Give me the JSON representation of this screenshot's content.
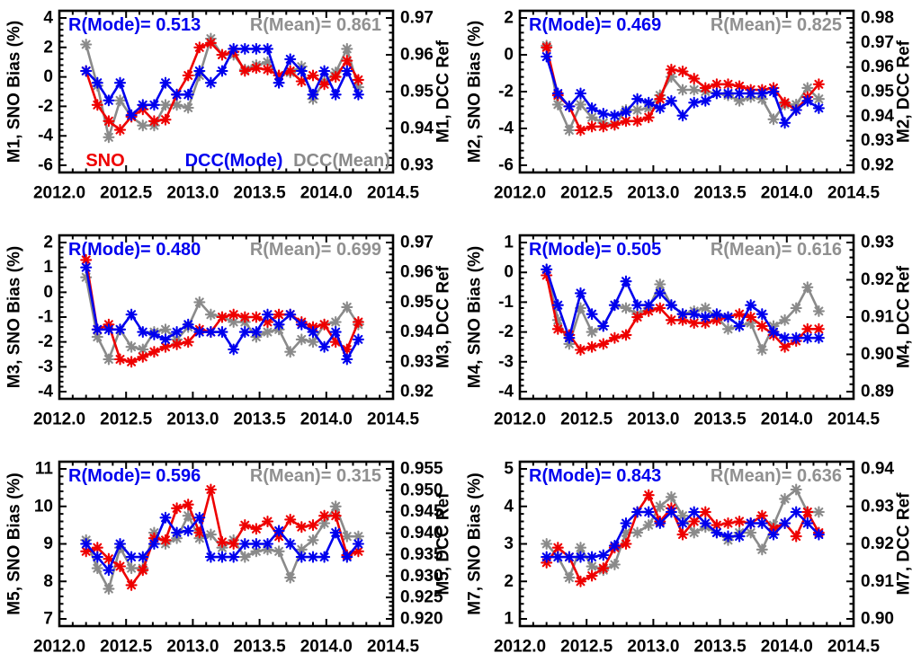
{
  "figure": {
    "background": "#ffffff",
    "description": "Six-panel time series figure comparing SNO bias and DCC reference trends for bands M1, M2, M3, M4, M5, M7"
  },
  "chart_data": {
    "type": "line",
    "grid": "off",
    "legend_position": "inside bottom of first panel",
    "legend": {
      "sno": "SNO",
      "mode": "DCC(Mode)",
      "mean": "DCC(Mean)"
    },
    "colors": {
      "sno": "#ee0000",
      "mode": "#0000ee",
      "mean": "#8a8a8a",
      "r_mean_text": "#909090",
      "axis": "#000000"
    },
    "x": {
      "min": 2012.0,
      "max": 2014.5,
      "tick_labels": [
        "2012.0",
        "2012.5",
        "2013.0",
        "2013.5",
        "2014.0",
        "2014.5"
      ],
      "major_step": 0.5,
      "minor_step": 0.1,
      "data_start": 2012.2,
      "data_step": 0.085
    },
    "charts": [
      {
        "id": "M1",
        "r_mode_text": "R(Mode)= 0.513",
        "r_mean_text": "R(Mean)= 0.861",
        "ylabel_left": "M1, SNO Bias (%)",
        "ylabel_right": "M1, DCC Ref",
        "yleft_ticks": [
          "4",
          "2",
          "0",
          "-2",
          "-4",
          "-6"
        ],
        "yright_ticks": [
          "0.97",
          "0.96",
          "0.95",
          "0.94",
          "0.93"
        ],
        "show_legend": true,
        "series": {
          "sno": [
            0.4,
            -1.9,
            -3.0,
            -3.6,
            -2.7,
            -2.2,
            -3.0,
            -2.9,
            -1.2,
            0.1,
            2.0,
            2.3,
            1.5,
            1.7,
            0.4,
            0.6,
            0.5,
            0.1,
            0.4,
            -0.3,
            0.1,
            -0.5,
            0.0,
            1.1,
            -0.2
          ],
          "mode": [
            0.4,
            -0.4,
            -1.6,
            -0.4,
            -2.6,
            -1.9,
            -1.9,
            -0.4,
            -1.2,
            -1.2,
            0.4,
            -0.4,
            0.4,
            1.9,
            1.9,
            1.9,
            1.9,
            -0.4,
            1.2,
            0.4,
            -1.2,
            0.4,
            -1.2,
            0.4,
            -1.2
          ],
          "mean": [
            2.2,
            -0.6,
            -4.1,
            -1.6,
            -2.7,
            -3.3,
            -3.3,
            -1.9,
            -1.9,
            -2.1,
            0.1,
            2.6,
            1.5,
            1.5,
            0.5,
            0.8,
            1.0,
            0.1,
            0.3,
            0.7,
            -1.5,
            -0.3,
            0.3,
            1.9,
            -0.7
          ]
        }
      },
      {
        "id": "M2",
        "r_mode_text": "R(Mode)= 0.469",
        "r_mean_text": "R(Mean)= 0.825",
        "ylabel_left": "M2, SNO Bias (%)",
        "ylabel_right": "M2, DCC Ref",
        "yleft_ticks": [
          "2",
          "0",
          "-2",
          "-4",
          "-6"
        ],
        "yright_ticks": [
          "0.98",
          "0.97",
          "0.96",
          "0.95",
          "0.94",
          "0.93",
          "0.92"
        ],
        "show_legend": false,
        "series": {
          "sno": [
            0.4,
            -2.2,
            -2.8,
            -4.1,
            -3.9,
            -3.9,
            -3.8,
            -3.6,
            -3.6,
            -3.4,
            -2.4,
            -0.8,
            -0.9,
            -1.3,
            -1.8,
            -1.6,
            -1.6,
            -1.7,
            -1.9,
            -1.9,
            -1.8,
            -2.6,
            -3.0,
            -2.3,
            -1.6
          ],
          "mode": [
            -0.1,
            -2.1,
            -2.8,
            -2.1,
            -2.9,
            -3.2,
            -3.3,
            -3.1,
            -2.4,
            -2.6,
            -2.9,
            -2.5,
            -3.3,
            -2.6,
            -2.5,
            -2.1,
            -2.1,
            -2.1,
            -2.1,
            -2.1,
            -2.0,
            -3.7,
            -3.0,
            -2.5,
            -2.9
          ],
          "mean": [
            0.5,
            -2.7,
            -4.1,
            -2.7,
            -3.4,
            -3.7,
            -3.8,
            -3.0,
            -3.0,
            -2.9,
            -2.2,
            -1.2,
            -1.9,
            -1.9,
            -2.0,
            -2.1,
            -2.2,
            -2.5,
            -2.3,
            -2.4,
            -3.5,
            -2.7,
            -2.7,
            -1.8,
            -2.4
          ]
        }
      },
      {
        "id": "M3",
        "r_mode_text": "R(Mode)= 0.480",
        "r_mean_text": "R(Mean)= 0.699",
        "ylabel_left": "M3, SNO Bias (%)",
        "ylabel_right": "M3, DCC Ref",
        "yleft_ticks": [
          "2",
          "1",
          "0",
          "-1",
          "-2",
          "-3",
          "-4"
        ],
        "yright_ticks": [
          "0.97",
          "0.96",
          "0.95",
          "0.94",
          "0.93",
          "0.92"
        ],
        "show_legend": false,
        "series": {
          "sno": [
            1.3,
            -1.5,
            -1.3,
            -2.7,
            -2.8,
            -2.6,
            -2.4,
            -2.2,
            -2.1,
            -2.0,
            -1.5,
            -1.6,
            -1.0,
            -0.9,
            -1.0,
            -1.0,
            -1.2,
            -0.9,
            -0.9,
            -1.2,
            -1.4,
            -1.3,
            -2.0,
            -2.3,
            -1.2
          ],
          "mode": [
            1.0,
            -1.5,
            -1.5,
            -1.5,
            -0.9,
            -1.6,
            -1.7,
            -1.9,
            -1.6,
            -1.3,
            -1.6,
            -1.6,
            -1.6,
            -2.3,
            -1.6,
            -1.6,
            -0.9,
            -1.3,
            -0.9,
            -1.3,
            -1.6,
            -2.2,
            -1.6,
            -2.7,
            -1.9
          ],
          "mean": [
            0.6,
            -1.8,
            -2.7,
            -1.5,
            -2.2,
            -2.3,
            -1.6,
            -1.5,
            -1.9,
            -1.4,
            -0.4,
            -0.9,
            -1.0,
            -1.2,
            -1.2,
            -1.8,
            -1.6,
            -1.5,
            -2.4,
            -1.9,
            -2.0,
            -1.3,
            -1.2,
            -0.6,
            -1.3
          ]
        }
      },
      {
        "id": "M4",
        "r_mode_text": "R(Mode)= 0.505",
        "r_mean_text": "R(Mean)= 0.616",
        "ylabel_left": "M4, SNO Bias (%)",
        "ylabel_right": "M4, DCC Ref",
        "yleft_ticks": [
          "1",
          "0",
          "-1",
          "-2",
          "-3",
          "-4"
        ],
        "yright_ticks": [
          "0.93",
          "0.92",
          "0.91",
          "0.90",
          "0.89"
        ],
        "show_legend": false,
        "series": {
          "sno": [
            -0.1,
            -1.9,
            -2.1,
            -2.6,
            -2.5,
            -2.4,
            -2.2,
            -2.1,
            -1.5,
            -1.3,
            -1.2,
            -1.6,
            -1.6,
            -1.7,
            -1.7,
            -1.6,
            -1.5,
            -1.4,
            -1.5,
            -1.8,
            -2.1,
            -2.5,
            -2.3,
            -1.9,
            -1.9
          ],
          "mode": [
            0.1,
            -1.1,
            -2.2,
            -0.7,
            -1.4,
            -1.8,
            -1.1,
            -0.3,
            -1.1,
            -1.1,
            -0.7,
            -1.1,
            -1.4,
            -1.4,
            -1.5,
            -1.4,
            -1.5,
            -1.8,
            -1.1,
            -1.4,
            -2.0,
            -2.2,
            -2.2,
            -2.2,
            -2.2
          ],
          "mean": [
            0.1,
            -1.6,
            -2.4,
            -1.2,
            -2.0,
            -1.8,
            -1.1,
            -1.2,
            -1.4,
            -1.2,
            -0.4,
            -1.1,
            -1.4,
            -1.3,
            -1.2,
            -1.5,
            -1.9,
            -1.8,
            -1.7,
            -2.6,
            -1.8,
            -1.6,
            -1.2,
            -0.5,
            -1.3
          ]
        }
      },
      {
        "id": "M5",
        "r_mode_text": "R(Mode)= 0.596",
        "r_mean_text": "R(Mean)= 0.315",
        "ylabel_left": "M5, SNO Bias (%)",
        "ylabel_right": "M5, DCC Ref",
        "yleft_ticks": [
          "11",
          "10",
          "9",
          "8",
          "7"
        ],
        "yright_ticks": [
          "0.955",
          "0.950",
          "0.945",
          "0.940",
          "0.935",
          "0.930",
          "0.925",
          "0.920"
        ],
        "show_legend": false,
        "series": {
          "sno": [
            8.8,
            8.9,
            8.6,
            8.4,
            7.9,
            8.3,
            9.15,
            9.1,
            9.95,
            10.05,
            9.3,
            10.45,
            9.05,
            9.0,
            9.5,
            9.4,
            9.6,
            9.2,
            9.65,
            9.45,
            9.5,
            9.75,
            9.75,
            8.7,
            8.8
          ],
          "mode": [
            9.0,
            8.65,
            8.3,
            9.0,
            8.65,
            8.65,
            9.0,
            9.7,
            9.3,
            9.35,
            9.7,
            8.65,
            8.65,
            8.65,
            9.0,
            9.0,
            9.0,
            9.35,
            9.0,
            8.65,
            8.65,
            8.65,
            9.3,
            8.65,
            9.0
          ],
          "mean": [
            9.1,
            8.35,
            7.8,
            8.9,
            8.35,
            8.35,
            9.3,
            9.0,
            9.15,
            9.75,
            9.15,
            9.25,
            8.9,
            9.1,
            8.65,
            8.8,
            8.85,
            8.8,
            8.1,
            8.85,
            9.1,
            9.55,
            10.0,
            9.2,
            9.2
          ]
        }
      },
      {
        "id": "M7",
        "r_mode_text": "R(Mode)= 0.843",
        "r_mean_text": "R(Mean)= 0.636",
        "ylabel_left": "M7, SNO Bias (%)",
        "ylabel_right": "M7, DCC Ref",
        "yleft_ticks": [
          "5",
          "4",
          "3",
          "2",
          "1"
        ],
        "yright_ticks": [
          "0.94",
          "0.93",
          "0.92",
          "0.91",
          "0.90"
        ],
        "show_legend": false,
        "series": {
          "sno": [
            2.5,
            2.9,
            2.65,
            2.0,
            2.15,
            2.35,
            2.9,
            3.0,
            3.85,
            4.3,
            3.6,
            3.95,
            3.25,
            3.6,
            3.85,
            3.5,
            3.55,
            3.6,
            3.55,
            3.75,
            3.4,
            3.55,
            3.2,
            3.85,
            3.3
          ],
          "mode": [
            2.65,
            2.65,
            2.65,
            2.65,
            2.65,
            2.7,
            2.95,
            3.55,
            3.85,
            3.85,
            3.55,
            3.85,
            3.55,
            3.85,
            3.55,
            3.3,
            3.2,
            3.2,
            3.55,
            3.55,
            3.25,
            3.55,
            3.85,
            3.55,
            3.25
          ],
          "mean": [
            3.0,
            2.65,
            2.1,
            2.9,
            2.4,
            2.3,
            2.45,
            3.3,
            3.3,
            3.5,
            4.0,
            4.25,
            3.75,
            3.3,
            3.45,
            3.3,
            3.1,
            3.3,
            3.3,
            2.85,
            3.5,
            4.2,
            4.45,
            3.85,
            3.85
          ]
        }
      }
    ]
  }
}
